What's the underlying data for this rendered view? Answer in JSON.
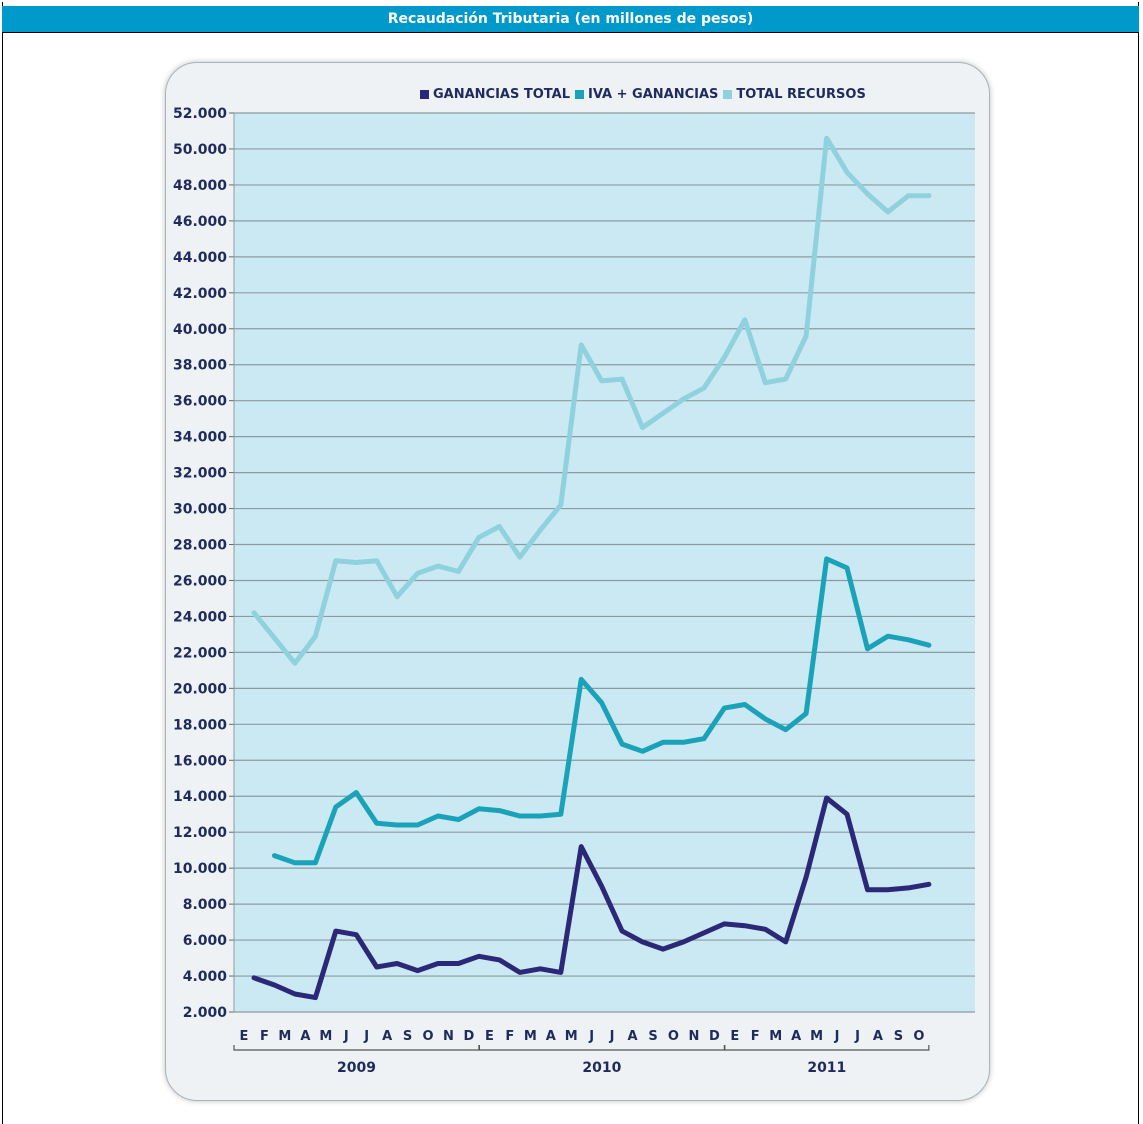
{
  "header": {
    "title": "Recaudación Tributaria (en millones de pesos)"
  },
  "chart_data": {
    "type": "line",
    "ylim": [
      2000,
      52000
    ],
    "yticks": [
      2000,
      4000,
      6000,
      8000,
      10000,
      12000,
      14000,
      16000,
      18000,
      20000,
      22000,
      24000,
      26000,
      28000,
      30000,
      32000,
      34000,
      36000,
      38000,
      40000,
      42000,
      44000,
      46000,
      48000,
      50000,
      52000
    ],
    "ytick_labels": [
      "2.000",
      "4.000",
      "6.000",
      "8.000",
      "10.000",
      "12.000",
      "14.000",
      "16.000",
      "18.000",
      "20.000",
      "22.000",
      "24.000",
      "26.000",
      "28.000",
      "30.000",
      "32.000",
      "34.000",
      "36.000",
      "38.000",
      "40.000",
      "42.000",
      "44.000",
      "46.000",
      "48.000",
      "50.000",
      "52.000"
    ],
    "categories": [
      "E",
      "F",
      "M",
      "A",
      "M",
      "J",
      "J",
      "A",
      "S",
      "O",
      "N",
      "D",
      "E",
      "F",
      "M",
      "A",
      "M",
      "J",
      "J",
      "A",
      "S",
      "O",
      "N",
      "D",
      "E",
      "F",
      "M",
      "A",
      "M",
      "J",
      "J",
      "A",
      "S",
      "O"
    ],
    "years": [
      {
        "label": "2009",
        "start": 0,
        "end": 11
      },
      {
        "label": "2010",
        "start": 12,
        "end": 23
      },
      {
        "label": "2011",
        "start": 24,
        "end": 33
      }
    ],
    "grid": true,
    "legend_position": "top-right",
    "series": [
      {
        "name": "GANANCIAS TOTAL",
        "color": "#2b2878",
        "values": [
          3900,
          3500,
          3000,
          2800,
          6500,
          6300,
          4500,
          4700,
          4300,
          4700,
          4700,
          5100,
          4900,
          4200,
          4400,
          4200,
          11200,
          9000,
          6500,
          5900,
          5500,
          5900,
          6400,
          6900,
          6800,
          6600,
          5900,
          9500,
          13900,
          13000,
          8800,
          8800,
          8900,
          9100
        ]
      },
      {
        "name": "IVA + GANANCIAS",
        "color": "#1aa3b8",
        "values": [
          null,
          10700,
          10300,
          10300,
          13400,
          14200,
          12500,
          12400,
          12400,
          12900,
          12700,
          13300,
          13200,
          12900,
          12900,
          13000,
          20500,
          19200,
          16900,
          16500,
          17000,
          17000,
          17200,
          18900,
          19100,
          18300,
          17700,
          18600,
          27200,
          26700,
          22200,
          22900,
          22700,
          22400
        ]
      },
      {
        "name": "TOTAL RECURSOS",
        "color": "#8fd2dd",
        "values": [
          24200,
          22800,
          21400,
          22900,
          27100,
          27000,
          27100,
          25100,
          26400,
          26800,
          26500,
          28400,
          29000,
          27300,
          28800,
          30200,
          39100,
          37100,
          37200,
          34500,
          35300,
          36100,
          36700,
          38400,
          40500,
          37000,
          37200,
          39600,
          50600,
          48700,
          47500,
          46500,
          47400,
          47400
        ]
      }
    ]
  }
}
